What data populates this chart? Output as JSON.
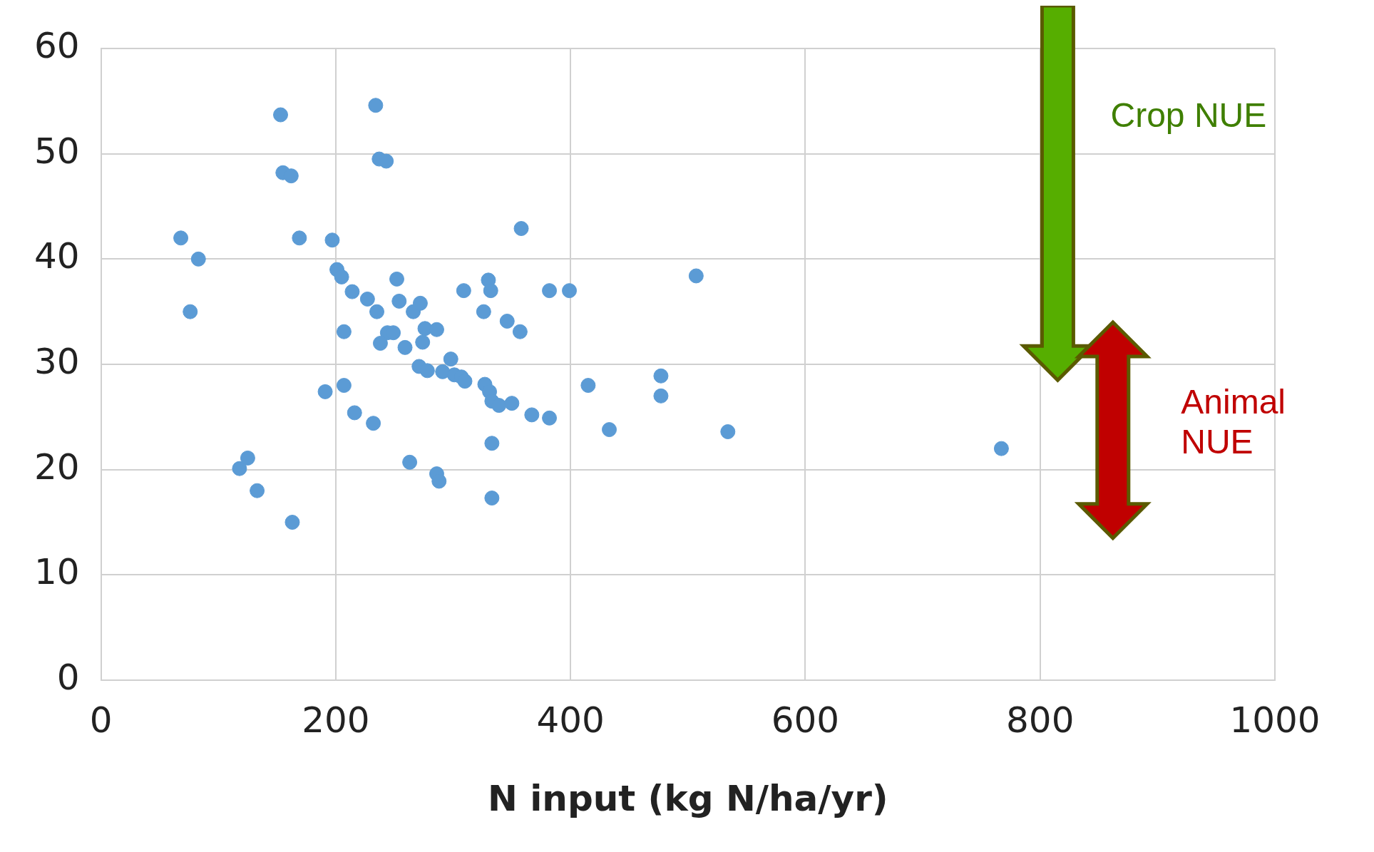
{
  "chart_data": {
    "type": "scatter",
    "xlabel": "N input (kg N/ha/yr)",
    "x": [
      68,
      83,
      76,
      153,
      155,
      162,
      169,
      197,
      234,
      237,
      243,
      358,
      201,
      205,
      214,
      227,
      235,
      207,
      252,
      254,
      266,
      272,
      244,
      249,
      238,
      259,
      274,
      276,
      286,
      309,
      330,
      332,
      326,
      346,
      357,
      382,
      399,
      507,
      271,
      278,
      291,
      298,
      301,
      307,
      310,
      327,
      331,
      333,
      339,
      350,
      367,
      382,
      191,
      207,
      216,
      232,
      263,
      286,
      288,
      333,
      333,
      118,
      125,
      133,
      163,
      415,
      433,
      477,
      477,
      534,
      767
    ],
    "values": [
      42.0,
      40.0,
      35.0,
      53.7,
      48.2,
      47.9,
      42.0,
      41.8,
      54.6,
      49.5,
      49.3,
      42.9,
      39.0,
      38.3,
      36.9,
      36.2,
      35.0,
      33.1,
      38.1,
      36.0,
      35.0,
      35.8,
      33.0,
      33.0,
      32.0,
      31.6,
      32.1,
      33.4,
      33.3,
      37.0,
      38.0,
      37.0,
      35.0,
      34.1,
      33.1,
      37.0,
      37.0,
      38.4,
      29.8,
      29.4,
      29.3,
      30.5,
      29.0,
      28.8,
      28.4,
      28.1,
      27.4,
      26.5,
      26.1,
      26.3,
      25.2,
      24.9,
      27.4,
      28.0,
      25.4,
      24.4,
      20.7,
      19.6,
      18.9,
      22.5,
      17.3,
      20.1,
      21.1,
      18.0,
      15.0,
      28.0,
      23.8,
      28.9,
      27.0,
      23.6,
      22.0
    ],
    "color": "#5b9bd5",
    "marker": "circle",
    "grid": true,
    "legend": false,
    "xlim": [
      0,
      1000
    ],
    "xticks": [
      0,
      200,
      400,
      600,
      800,
      1000
    ],
    "ylim": [
      0,
      60
    ],
    "yticks": [
      0,
      10,
      20,
      30,
      40,
      50,
      60
    ],
    "annotations": [
      "Crop NUE",
      "Animal NUE"
    ]
  }
}
